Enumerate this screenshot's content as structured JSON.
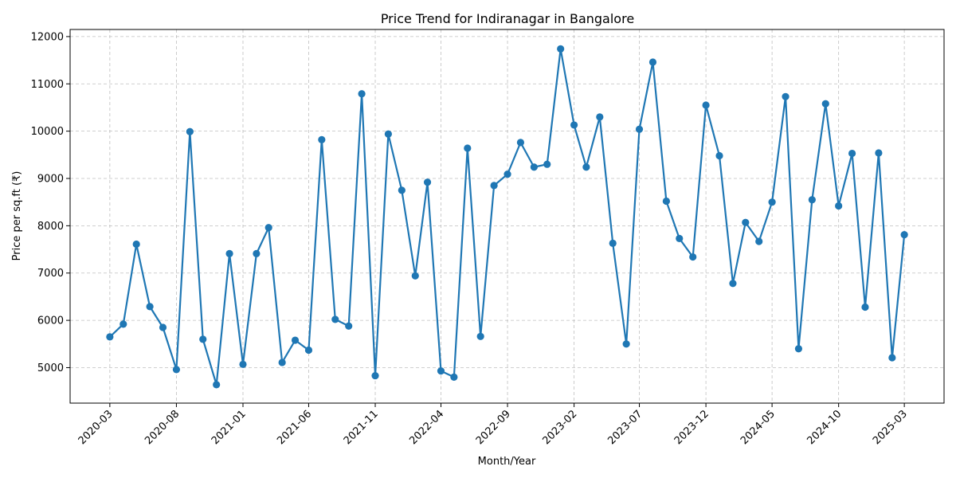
{
  "chart_data": {
    "type": "line",
    "title": "Price Trend for Indiranagar in Bangalore",
    "xlabel": "Month/Year",
    "ylabel": "Price per sq.ft (₹)",
    "grid": true,
    "line_color": "#1f77b4",
    "ylim": [
      4250,
      12150
    ],
    "y_ticks": [
      5000,
      6000,
      7000,
      8000,
      9000,
      10000,
      11000,
      12000
    ],
    "x_ticks": [
      "2020-03",
      "2020-08",
      "2021-01",
      "2021-06",
      "2021-11",
      "2022-04",
      "2022-09",
      "2023-02",
      "2023-07",
      "2023-12",
      "2024-05",
      "2024-10",
      "2025-03"
    ],
    "x": [
      "2020-03-01",
      "2020-04-01",
      "2020-05-01",
      "2020-06-01",
      "2020-07-01",
      "2020-08-01",
      "2020-09-01",
      "2020-10-01",
      "2020-11-01",
      "2020-12-01",
      "2021-01-01",
      "2021-02-01",
      "2021-03-01",
      "2021-04-01",
      "2021-05-01",
      "2021-06-01",
      "2021-07-01",
      "2021-08-01",
      "2021-09-01",
      "2021-10-01",
      "2021-11-01",
      "2021-12-01",
      "2022-01-01",
      "2022-02-01",
      "2022-03-01",
      "2022-04-01",
      "2022-05-01",
      "2022-06-01",
      "2022-07-01",
      "2022-08-01",
      "2022-09-01",
      "2022-10-01",
      "2022-11-01",
      "2022-12-01",
      "2023-01-01",
      "2023-02-01",
      "2023-03-01",
      "2023-04-01",
      "2023-05-01",
      "2023-06-01",
      "2023-07-01",
      "2023-08-01",
      "2023-09-01",
      "2023-10-01",
      "2023-11-01",
      "2023-12-01",
      "2024-01-01",
      "2024-02-01",
      "2024-03-01",
      "2024-04-01",
      "2024-05-01",
      "2024-06-01",
      "2024-07-01",
      "2024-08-01",
      "2024-09-01",
      "2024-10-01",
      "2024-11-01",
      "2024-12-01",
      "2025-01-01",
      "2025-02-01",
      "2025-03-01"
    ],
    "values": [
      5650,
      5920,
      7610,
      6290,
      5850,
      4960,
      9990,
      5600,
      4640,
      7410,
      5070,
      7410,
      7960,
      5110,
      5580,
      5370,
      9820,
      6020,
      5880,
      10790,
      4830,
      9940,
      8750,
      6940,
      8920,
      4930,
      4800,
      9640,
      5660,
      8850,
      9090,
      9760,
      9240,
      9300,
      11740,
      10130,
      9240,
      10300,
      7630,
      5500,
      10040,
      11460,
      8520,
      7730,
      7340,
      10550,
      9480,
      6780,
      8070,
      7670,
      8500,
      10730,
      5400,
      8550,
      10580,
      8420,
      9530,
      6280,
      9540,
      5210,
      7810
    ]
  }
}
